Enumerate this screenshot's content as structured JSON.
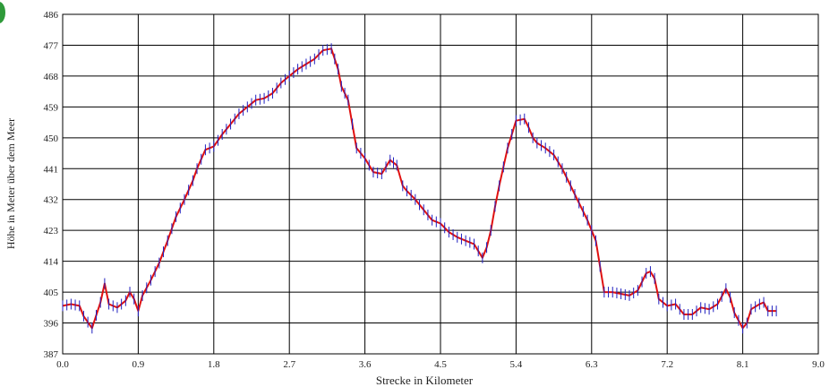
{
  "chart_data": {
    "type": "line",
    "title": "",
    "xlabel": "Strecke in Kilometer",
    "ylabel": "Höhe in Meter über dem Meer",
    "xlim": [
      0,
      9.0
    ],
    "ylim": [
      387,
      486
    ],
    "x_ticks": [
      "0.0",
      "0.9",
      "1.8",
      "2.7",
      "3.6",
      "4.5",
      "5.4",
      "6.3",
      "7.2",
      "8.1",
      "9.0"
    ],
    "y_ticks": [
      "387",
      "396",
      "405",
      "414",
      "423",
      "432",
      "441",
      "450",
      "459",
      "468",
      "477",
      "486"
    ],
    "grid": true,
    "line_color": "#e01010",
    "marker_color": "#2020c0",
    "series": [
      {
        "x": [
          0.0,
          0.1,
          0.2,
          0.25,
          0.35,
          0.45,
          0.5,
          0.55,
          0.65,
          0.75,
          0.8,
          0.85,
          0.9,
          0.95,
          1.05,
          1.15,
          1.25,
          1.35,
          1.45,
          1.55,
          1.6,
          1.7,
          1.8,
          1.9,
          2.0,
          2.1,
          2.2,
          2.3,
          2.4,
          2.5,
          2.6,
          2.7,
          2.8,
          2.9,
          3.0,
          3.1,
          3.2,
          3.28,
          3.32,
          3.4,
          3.5,
          3.6,
          3.7,
          3.8,
          3.9,
          3.98,
          4.05,
          4.1,
          4.2,
          4.3,
          4.4,
          4.5,
          4.6,
          4.7,
          4.8,
          4.9,
          5.0,
          5.05,
          5.1,
          5.15,
          5.2,
          5.3,
          5.4,
          5.5,
          5.55,
          5.6,
          5.65,
          5.75,
          5.85,
          5.95,
          6.05,
          6.15,
          6.25,
          6.35,
          6.45,
          6.55,
          6.65,
          6.75,
          6.85,
          6.95,
          7.0,
          7.05,
          7.1,
          7.2,
          7.3,
          7.4,
          7.5,
          7.6,
          7.7,
          7.8,
          7.9,
          7.95,
          8.0,
          8.1,
          8.15,
          8.2,
          8.3,
          8.35,
          8.4,
          8.5
        ],
        "y": [
          401,
          401.5,
          401,
          398,
          394.5,
          402,
          407.5,
          401.5,
          400.5,
          402.5,
          405,
          403,
          399.5,
          404,
          408.5,
          413.5,
          420,
          427,
          432,
          437.5,
          441,
          446.5,
          447.5,
          451,
          454,
          457,
          459,
          461,
          461.5,
          463,
          466,
          468,
          470,
          471.5,
          473,
          475.5,
          476,
          470,
          465,
          461,
          447,
          444,
          440,
          439.5,
          443.5,
          442,
          436,
          434.5,
          432,
          429,
          426,
          425,
          422.5,
          421,
          420,
          419,
          415,
          418,
          423,
          430,
          436,
          447,
          455,
          455.5,
          453,
          450,
          448.5,
          447,
          445,
          441,
          436,
          431,
          426,
          420,
          405,
          405,
          404.5,
          404,
          405.5,
          410.5,
          411,
          409,
          403,
          401,
          401.5,
          398.5,
          398.5,
          400.5,
          400,
          401.5,
          406,
          403.5,
          399,
          394.5,
          396,
          400,
          401.5,
          402,
          399.5,
          399.5
        ]
      }
    ]
  }
}
